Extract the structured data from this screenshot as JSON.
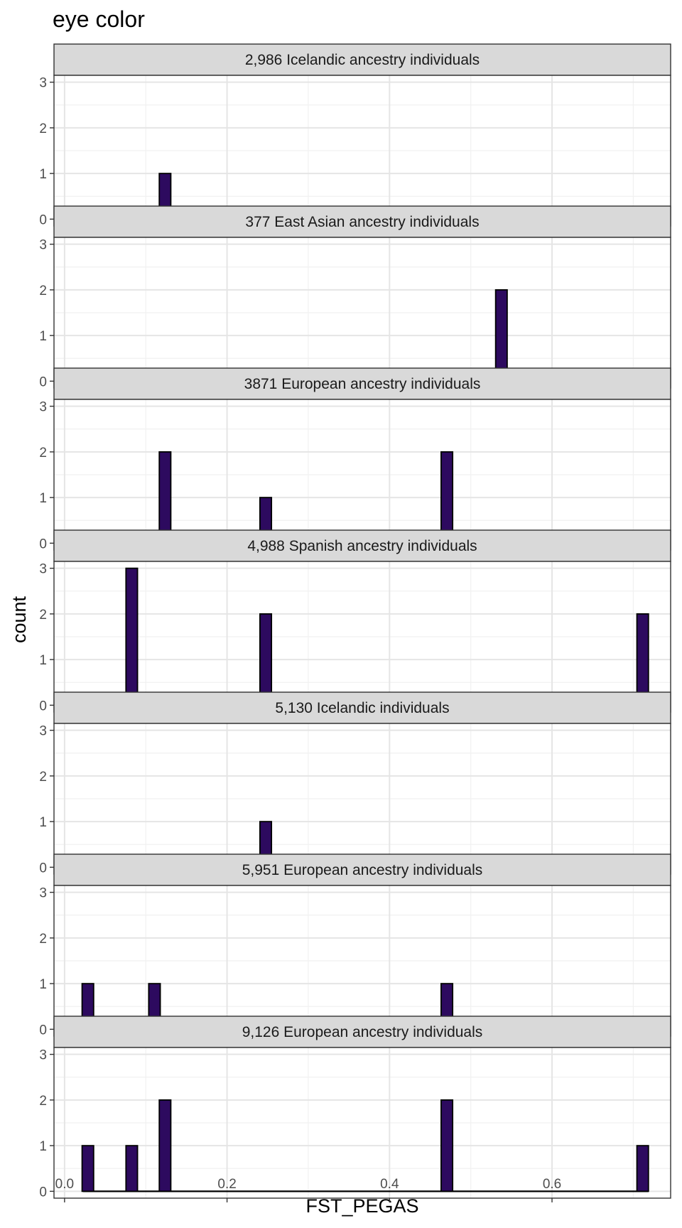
{
  "chart_data": {
    "type": "bar",
    "title": "eye color",
    "xlabel": "FST_PEGAS",
    "ylabel": "count",
    "xlim": [
      -0.013,
      0.746
    ],
    "ylim": [
      -0.15,
      3.15
    ],
    "x_ticks": [
      0.0,
      0.2,
      0.4,
      0.6
    ],
    "x_tick_labels": [
      "0.0",
      "0.2",
      "0.4",
      "0.6"
    ],
    "y_ticks": [
      0,
      1,
      2,
      3
    ],
    "y_tick_labels": [
      "0",
      "1",
      "2",
      "3"
    ],
    "grid": true,
    "bar_color": "#2d0a5f",
    "bar_outline": "#000000",
    "strip_fill": "#d9d9d9",
    "bin_width": 0.0142,
    "bin_range": [
      0.0227,
      0.7187
    ],
    "facets": [
      {
        "label": "2,986 Icelandic ancestry individuals",
        "bars": [
          {
            "x": 0.1237,
            "count": 1
          }
        ]
      },
      {
        "label": "377 East Asian ancestry individuals",
        "bars": [
          {
            "x": 0.5377,
            "count": 2
          }
        ]
      },
      {
        "label": "3871 European ancestry individuals",
        "bars": [
          {
            "x": 0.1237,
            "count": 2
          },
          {
            "x": 0.2476,
            "count": 1
          },
          {
            "x": 0.4706,
            "count": 2
          }
        ]
      },
      {
        "label": "4,988 Spanish ancestry individuals",
        "bars": [
          {
            "x": 0.0827,
            "count": 3
          },
          {
            "x": 0.2476,
            "count": 2
          },
          {
            "x": 0.7116,
            "count": 2
          }
        ]
      },
      {
        "label": "5,130 Icelandic individuals",
        "bars": [
          {
            "x": 0.2476,
            "count": 1
          }
        ]
      },
      {
        "label": "5,951 European ancestry individuals",
        "bars": [
          {
            "x": 0.0287,
            "count": 1
          },
          {
            "x": 0.1107,
            "count": 1
          },
          {
            "x": 0.4706,
            "count": 1
          }
        ]
      },
      {
        "label": "9,126 European ancestry individuals",
        "bars": [
          {
            "x": 0.0287,
            "count": 1
          },
          {
            "x": 0.0827,
            "count": 1
          },
          {
            "x": 0.1237,
            "count": 2
          },
          {
            "x": 0.4706,
            "count": 2
          },
          {
            "x": 0.7116,
            "count": 1
          }
        ]
      }
    ]
  }
}
